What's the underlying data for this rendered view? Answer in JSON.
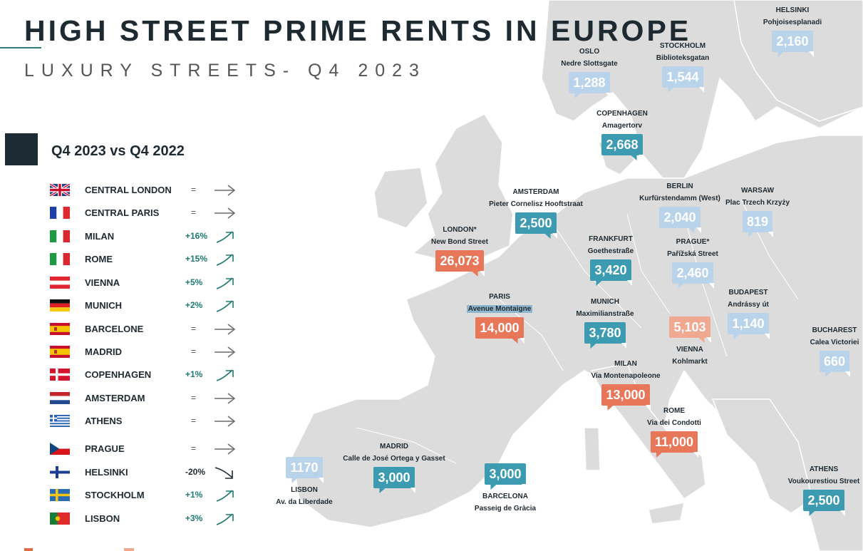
{
  "title": "HIGH STREET PRIME RENTS IN EUROPE",
  "subtitle": "LUXURY STREETS- Q4 2023",
  "legend": {
    "heading": "Q4 2023 vs Q4 2022",
    "rows": [
      {
        "city": "CENTRAL LONDON",
        "flag": "uk-flag-icon",
        "change": "=",
        "trend": "flat"
      },
      {
        "city": "CENTRAL PARIS",
        "flag": "france-flag-icon",
        "change": "=",
        "trend": "flat"
      },
      {
        "city": "MILAN",
        "flag": "italy-flag-icon",
        "change": "+16%",
        "trend": "up"
      },
      {
        "city": "ROME",
        "flag": "italy-flag-icon",
        "change": "+15%",
        "trend": "up"
      },
      {
        "city": "VIENNA",
        "flag": "austria-flag-icon",
        "change": "+5%",
        "trend": "up"
      },
      {
        "city": "MUNICH",
        "flag": "germany-flag-icon",
        "change": "+2%",
        "trend": "up"
      },
      {
        "city": "BARCELONE",
        "flag": "spain-flag-icon",
        "change": "=",
        "trend": "flat"
      },
      {
        "city": "MADRID",
        "flag": "spain-flag-icon",
        "change": "=",
        "trend": "flat"
      },
      {
        "city": "COPENHAGEN",
        "flag": "denmark-flag-icon",
        "change": "+1%",
        "trend": "up"
      },
      {
        "city": "AMSTERDAM",
        "flag": "netherlands-flag-icon",
        "change": "=",
        "trend": "flat"
      },
      {
        "city": "ATHENS",
        "flag": "greece-flag-icon",
        "change": "=",
        "trend": "flat"
      },
      {
        "city": "PRAGUE",
        "flag": "czech-flag-icon",
        "change": "=",
        "trend": "flat"
      },
      {
        "city": "HELSINKI",
        "flag": "finland-flag-icon",
        "change": "-20%",
        "trend": "down"
      },
      {
        "city": "STOCKHOLM",
        "flag": "sweden-flag-icon",
        "change": "+1%",
        "trend": "up"
      },
      {
        "city": "LISBON",
        "flag": "portugal-flag-icon",
        "change": "+3%",
        "trend": "up"
      }
    ]
  },
  "colors": {
    "high": "#e8775a",
    "mid_high": "#f0a890",
    "mid": "#3c9bb0",
    "low": "#b8d3ea",
    "accent": "#1e7a72",
    "dark": "#1c2a33",
    "land": "#dcdcdc",
    "sea": "#ffffff"
  },
  "cities": [
    {
      "id": "helsinki",
      "city": "HELSINKI",
      "street": "Pohjoisesplanadi",
      "rent": "2,160",
      "tier": "low"
    },
    {
      "id": "oslo",
      "city": "OSLO",
      "street": "Nedre Slottsgate",
      "rent": "1,288",
      "tier": "low"
    },
    {
      "id": "stockholm",
      "city": "STOCKHOLM",
      "street": "Biblioteksgatan",
      "rent": "1,544",
      "tier": "low"
    },
    {
      "id": "copenhagen",
      "city": "COPENHAGEN",
      "street": "Amagertorv",
      "rent": "2,668",
      "tier": "mid"
    },
    {
      "id": "amsterdam",
      "city": "AMSTERDAM",
      "street": "Pieter Cornelisz Hooftstraat",
      "rent": "2,500",
      "tier": "mid"
    },
    {
      "id": "berlin",
      "city": "BERLIN",
      "street": "Kurfürstendamm (West)",
      "rent": "2,040",
      "tier": "low"
    },
    {
      "id": "warsaw",
      "city": "WARSAW",
      "street": "Plac Trzech Krzyży",
      "rent": "819",
      "tier": "low"
    },
    {
      "id": "london",
      "city": "LONDON*",
      "street": "New Bond Street",
      "rent": "26,073",
      "tier": "high"
    },
    {
      "id": "frankfurt",
      "city": "FRANKFURT",
      "street": "Goethestraße",
      "rent": "3,420",
      "tier": "mid"
    },
    {
      "id": "prague",
      "city": "PRAGUE*",
      "street": "Pařížská Street",
      "rent": "2,460",
      "tier": "low"
    },
    {
      "id": "paris",
      "city": "PARIS",
      "street": "Avenue Montaigne",
      "rent": "14,000",
      "tier": "high"
    },
    {
      "id": "munich",
      "city": "MUNICH",
      "street": "Maximilianstraße",
      "rent": "3,780",
      "tier": "mid"
    },
    {
      "id": "budapest",
      "city": "BUDAPEST",
      "street": "Andrássy út",
      "rent": "1,140",
      "tier": "low"
    },
    {
      "id": "vienna",
      "city": "VIENNA",
      "street": "Kohlmarkt",
      "rent": "5,103",
      "tier": "mid_high"
    },
    {
      "id": "bucharest",
      "city": "BUCHAREST",
      "street": "Calea Victoriei",
      "rent": "660",
      "tier": "low"
    },
    {
      "id": "milan",
      "city": "MILAN",
      "street": "Via Montenapoleone",
      "rent": "13,000",
      "tier": "high"
    },
    {
      "id": "rome",
      "city": "ROME",
      "street": "Via dei Condotti",
      "rent": "11,000",
      "tier": "high"
    },
    {
      "id": "madrid",
      "city": "MADRID",
      "street": "Calle de José Ortega y Gasset",
      "rent": "3,000",
      "tier": "mid"
    },
    {
      "id": "lisbon",
      "city": "LISBON",
      "street": "Av. da Liberdade",
      "rent": "1170",
      "tier": "low"
    },
    {
      "id": "barcelona",
      "city": "BARCELONA",
      "street": "Passeig de Gràcia",
      "rent": "3,000",
      "tier": "mid"
    },
    {
      "id": "athens",
      "city": "ATHENS",
      "street": "Voukourestiou Street",
      "rent": "2,500",
      "tier": "mid"
    }
  ]
}
